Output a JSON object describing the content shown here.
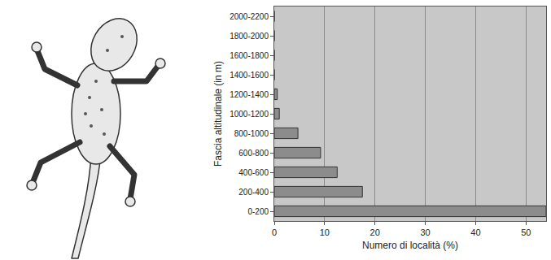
{
  "chart_data": {
    "type": "bar",
    "orientation": "horizontal",
    "x_label": "Numero di località (%)",
    "y_label": "Fascia altitudinale (in m)",
    "categories": [
      "0-200",
      "200-400",
      "400-600",
      "600-800",
      "800-1000",
      "1000-1200",
      "1200-1400",
      "1400-1600",
      "1600-1800",
      "1800-2000",
      "2000-2200"
    ],
    "values": [
      54,
      17.5,
      12.5,
      9.2,
      4.7,
      1.0,
      0.6,
      0,
      0,
      0,
      0
    ],
    "color": "#8c8c8c",
    "xlim": [
      0,
      54
    ],
    "xticks": [
      0,
      10,
      20,
      30,
      40,
      50
    ],
    "grid": true
  }
}
